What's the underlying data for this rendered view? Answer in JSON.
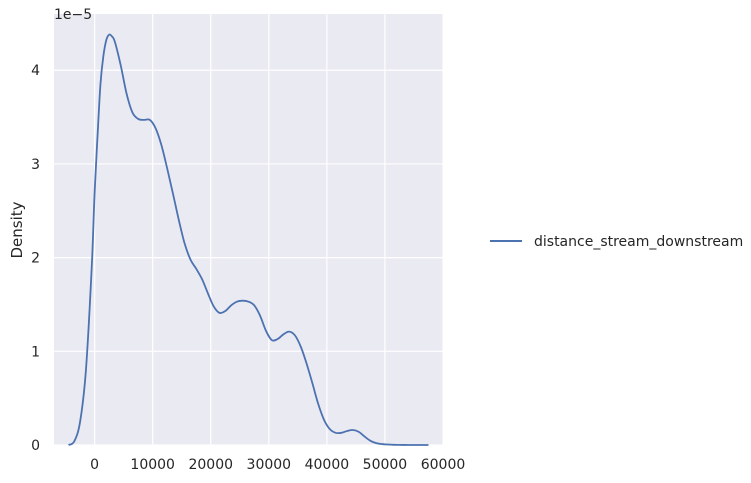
{
  "chart_data": {
    "type": "line",
    "kind": "kde",
    "title": "",
    "xlabel": "",
    "ylabel": "Density",
    "y_scale_note": "1e−5",
    "xlim": [
      -7000,
      60000
    ],
    "ylim": [
      0,
      4.6
    ],
    "x_ticks": [
      0,
      10000,
      20000,
      30000,
      40000,
      50000,
      60000
    ],
    "x_tick_labels": [
      "0",
      "10000",
      "20000",
      "30000",
      "40000",
      "50000",
      "60000"
    ],
    "y_ticks": [
      0,
      1,
      2,
      3,
      4
    ],
    "y_tick_labels": [
      "0",
      "1",
      "2",
      "3",
      "4"
    ],
    "grid": true,
    "legend_position": "right",
    "colors": {
      "background": "#eaeaf2",
      "grid": "#ffffff",
      "line": "#4c72b0"
    },
    "series": [
      {
        "name": "distance_stream_downstream",
        "x": [
          -4500,
          -3500,
          -2500,
          -1500,
          -500,
          0,
          500,
          1000,
          1500,
          2000,
          2500,
          3000,
          3500,
          4500,
          5500,
          6500,
          7500,
          8500,
          9500,
          10500,
          11500,
          12500,
          13500,
          14500,
          15500,
          16500,
          17500,
          18500,
          19500,
          20500,
          21500,
          22500,
          23500,
          24500,
          25500,
          26500,
          27500,
          28500,
          29500,
          30500,
          31500,
          32500,
          33500,
          34500,
          35500,
          36500,
          37500,
          38500,
          39500,
          40500,
          41500,
          42500,
          43500,
          44500,
          45500,
          46500,
          47500,
          48500,
          49500,
          50500,
          51500,
          52500,
          53500,
          54500,
          55500,
          56500,
          57500
        ],
        "y": [
          0.0,
          0.04,
          0.25,
          0.8,
          1.9,
          2.7,
          3.3,
          3.85,
          4.15,
          4.32,
          4.38,
          4.36,
          4.3,
          4.05,
          3.75,
          3.55,
          3.48,
          3.47,
          3.47,
          3.38,
          3.2,
          2.95,
          2.68,
          2.4,
          2.15,
          1.98,
          1.88,
          1.77,
          1.62,
          1.48,
          1.41,
          1.43,
          1.49,
          1.53,
          1.54,
          1.53,
          1.49,
          1.38,
          1.22,
          1.12,
          1.13,
          1.18,
          1.21,
          1.17,
          1.05,
          0.87,
          0.66,
          0.44,
          0.27,
          0.17,
          0.13,
          0.13,
          0.15,
          0.16,
          0.14,
          0.09,
          0.045,
          0.02,
          0.01,
          0.005,
          0.002,
          0.001,
          0.0005,
          0.0003,
          0.0002,
          0.0001,
          0.0
        ]
      }
    ]
  }
}
